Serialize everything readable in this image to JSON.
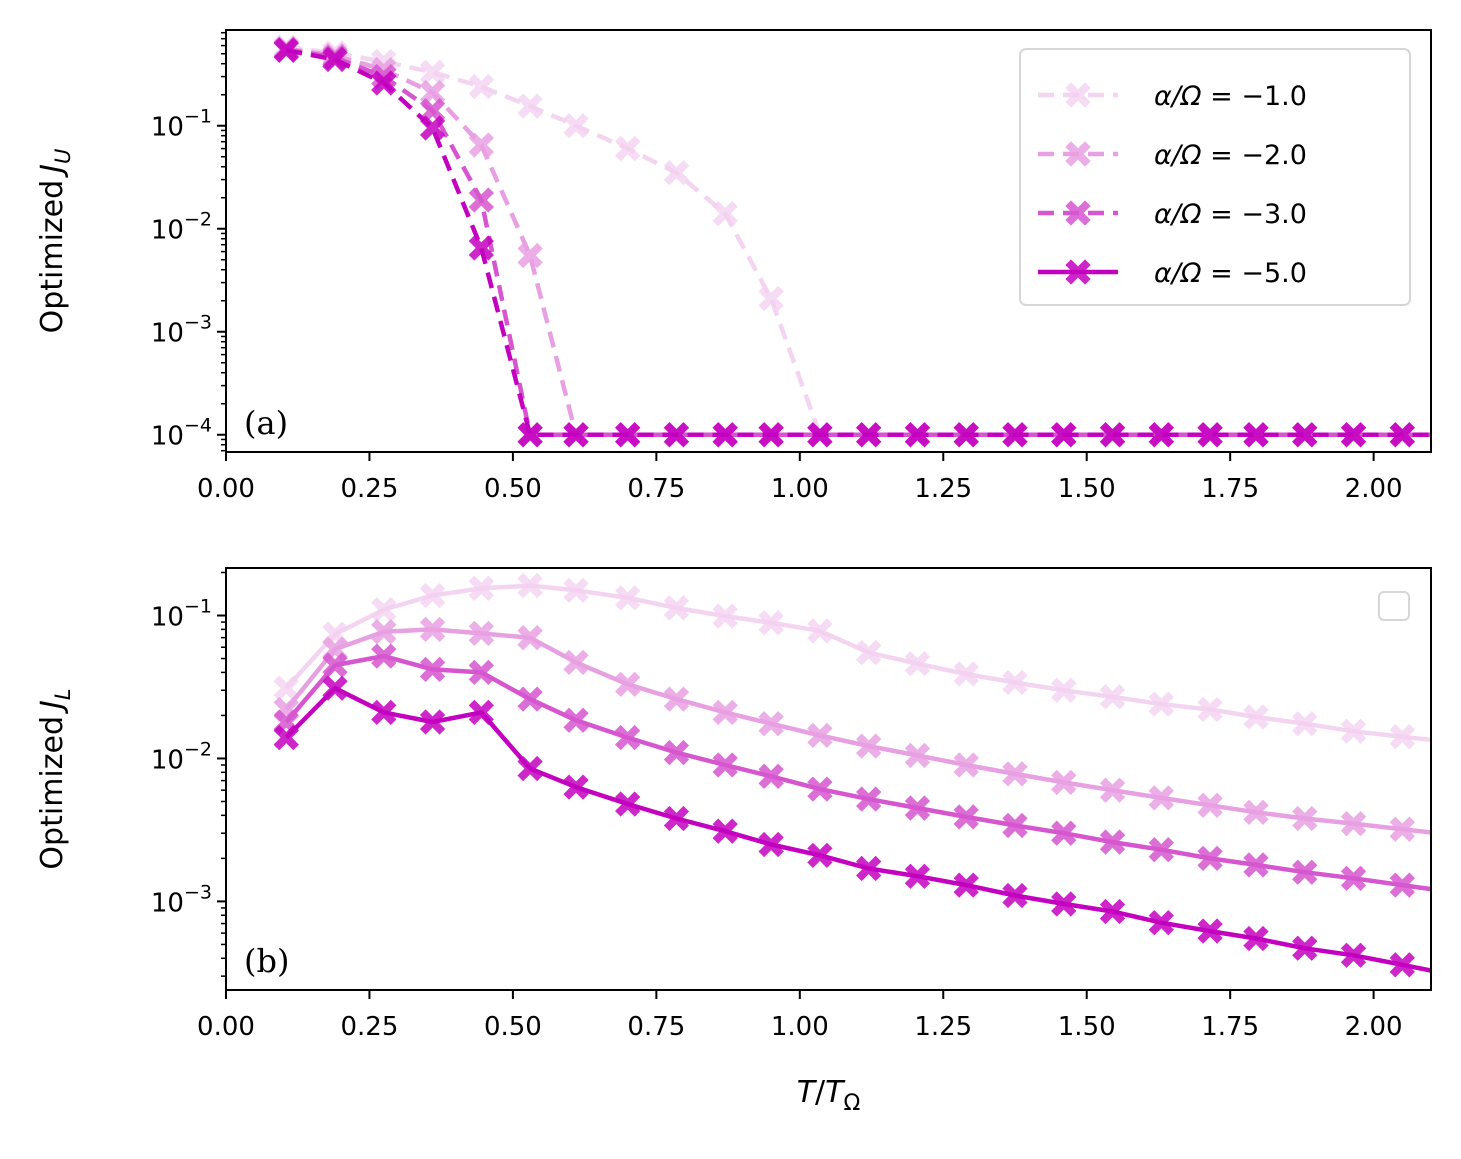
{
  "chart_data": [
    {
      "type": "line",
      "panel_label": "(a)",
      "ylabel_text": "Optimized",
      "ylabel_symbol": "J",
      "ylabel_sub": "U",
      "yscale": "log",
      "ylim": [
        6.8e-05,
        0.85
      ],
      "xlim": [
        0.0,
        2.1
      ],
      "xticks": [
        "0.00",
        "0.25",
        "0.50",
        "0.75",
        "1.00",
        "1.25",
        "1.50",
        "1.75",
        "2.00"
      ],
      "ytick_base": "10",
      "yticks": [
        {
          "value": 0.1,
          "exp": "−1"
        },
        {
          "value": 0.01,
          "exp": "−2"
        },
        {
          "value": 0.001,
          "exp": "−3"
        },
        {
          "value": 0.0001,
          "exp": "−4"
        }
      ],
      "legend": {
        "position": "upper right",
        "prefix": "α/Ω = ",
        "entries": [
          "−1.0",
          "−2.0",
          "−3.0",
          "−5.0"
        ]
      },
      "x": [
        0.105,
        0.19,
        0.275,
        0.36,
        0.445,
        0.53,
        0.61,
        0.7,
        0.785,
        0.87,
        0.95,
        1.035,
        1.12,
        1.205,
        1.29,
        1.375,
        1.46,
        1.545,
        1.63,
        1.715,
        1.795,
        1.88,
        1.965,
        2.05
      ],
      "series": [
        {
          "name": "α/Ω = −1.0",
          "color": "#f3d0f0",
          "alpha": 0.9,
          "dashed": true,
          "markers": true,
          "values": [
            0.58,
            0.51,
            0.42,
            0.33,
            0.24,
            0.155,
            0.1,
            0.06,
            0.035,
            0.014,
            0.0021,
            0.0001,
            0.0001,
            0.0001,
            0.0001,
            0.0001,
            0.0001,
            0.0001,
            0.0001,
            0.0001,
            0.0001,
            0.0001,
            0.0001,
            0.0001
          ]
        },
        {
          "name": "α/Ω = −2.0",
          "color": "#e7a0e2",
          "alpha": 1.0,
          "dashed": true,
          "markers": true,
          "values": [
            0.56,
            0.48,
            0.35,
            0.21,
            0.065,
            0.0055,
            0.0001,
            0.0001,
            0.0001,
            0.0001,
            0.0001,
            0.0001,
            0.0001,
            0.0001,
            0.0001,
            0.0001,
            0.0001,
            0.0001,
            0.0001,
            0.0001,
            0.0001,
            0.0001,
            0.0001,
            0.0001
          ]
        },
        {
          "name": "α/Ω = −3.0",
          "color": "#d656cf",
          "alpha": 1.0,
          "dashed": true,
          "markers": true,
          "values": [
            0.55,
            0.46,
            0.3,
            0.14,
            0.019,
            0.0001,
            0.0001,
            0.0001,
            0.0001,
            0.0001,
            0.0001,
            0.0001,
            0.0001,
            0.0001,
            0.0001,
            0.0001,
            0.0001,
            0.0001,
            0.0001,
            0.0001,
            0.0001,
            0.0001,
            0.0001,
            0.0001
          ]
        },
        {
          "name": "α/Ω = −5.0",
          "color": "#c400c0",
          "alpha": 1.0,
          "dashed": true,
          "markers": true,
          "values": [
            0.54,
            0.44,
            0.26,
            0.095,
            0.0065,
            0.0001,
            0.0001,
            0.0001,
            0.0001,
            0.0001,
            0.0001,
            0.0001,
            0.0001,
            0.0001,
            0.0001,
            0.0001,
            0.0001,
            0.0001,
            0.0001,
            0.0001,
            0.0001,
            0.0001,
            0.0001,
            0.0001
          ]
        }
      ]
    },
    {
      "type": "line",
      "panel_label": "(b)",
      "ylabel_text": "Optimized",
      "ylabel_symbol": "J",
      "ylabel_sub": "L",
      "yscale": "log",
      "ylim": [
        0.00024,
        0.215
      ],
      "xlim": [
        0.0,
        2.1
      ],
      "xlabel_symbol": "T",
      "xlabel_sep": "/",
      "xlabel_denom_symbol": "T",
      "xlabel_denom_sub": "Ω",
      "xticks": [
        "0.00",
        "0.25",
        "0.50",
        "0.75",
        "1.00",
        "1.25",
        "1.50",
        "1.75",
        "2.00"
      ],
      "ytick_base": "10",
      "yticks": [
        {
          "value": 0.1,
          "exp": "−1"
        },
        {
          "value": 0.01,
          "exp": "−2"
        },
        {
          "value": 0.001,
          "exp": "−3"
        }
      ],
      "legend": {
        "position": "upper right",
        "empty": true
      },
      "x": [
        0.105,
        0.19,
        0.275,
        0.36,
        0.445,
        0.53,
        0.61,
        0.7,
        0.785,
        0.87,
        0.95,
        1.035,
        1.12,
        1.205,
        1.29,
        1.375,
        1.46,
        1.545,
        1.63,
        1.715,
        1.795,
        1.88,
        1.965,
        2.05
      ],
      "series": [
        {
          "name": "α/Ω = −1.0",
          "color": "#f3d0f0",
          "alpha": 0.9,
          "dashed": false,
          "markers": true,
          "values": [
            0.031,
            0.074,
            0.11,
            0.138,
            0.155,
            0.162,
            0.15,
            0.133,
            0.113,
            0.099,
            0.089,
            0.078,
            0.055,
            0.046,
            0.039,
            0.034,
            0.03,
            0.027,
            0.024,
            0.022,
            0.0195,
            0.0175,
            0.0155,
            0.0142
          ]
        },
        {
          "name": "α/Ω = −2.0",
          "color": "#e7a0e2",
          "alpha": 1.0,
          "dashed": false,
          "markers": true,
          "values": [
            0.022,
            0.058,
            0.077,
            0.08,
            0.075,
            0.07,
            0.047,
            0.033,
            0.026,
            0.021,
            0.0175,
            0.0145,
            0.0122,
            0.0105,
            0.009,
            0.0078,
            0.0068,
            0.006,
            0.0053,
            0.0047,
            0.0042,
            0.0038,
            0.0035,
            0.0032
          ]
        },
        {
          "name": "α/Ω = −3.0",
          "color": "#d656cf",
          "alpha": 1.0,
          "dashed": false,
          "markers": true,
          "values": [
            0.018,
            0.045,
            0.052,
            0.042,
            0.04,
            0.026,
            0.0185,
            0.014,
            0.011,
            0.009,
            0.0075,
            0.0061,
            0.0052,
            0.0045,
            0.0039,
            0.0034,
            0.003,
            0.0026,
            0.0023,
            0.002,
            0.0018,
            0.0016,
            0.00145,
            0.0013
          ]
        },
        {
          "name": "α/Ω = −5.0",
          "color": "#c400c0",
          "alpha": 1.0,
          "dashed": false,
          "markers": true,
          "values": [
            0.014,
            0.031,
            0.021,
            0.018,
            0.021,
            0.0085,
            0.0063,
            0.0048,
            0.0038,
            0.0031,
            0.0025,
            0.0021,
            0.0017,
            0.0015,
            0.0013,
            0.0011,
            0.00096,
            0.00085,
            0.00071,
            0.00062,
            0.00055,
            0.00047,
            0.00042,
            0.00036
          ]
        }
      ]
    }
  ]
}
